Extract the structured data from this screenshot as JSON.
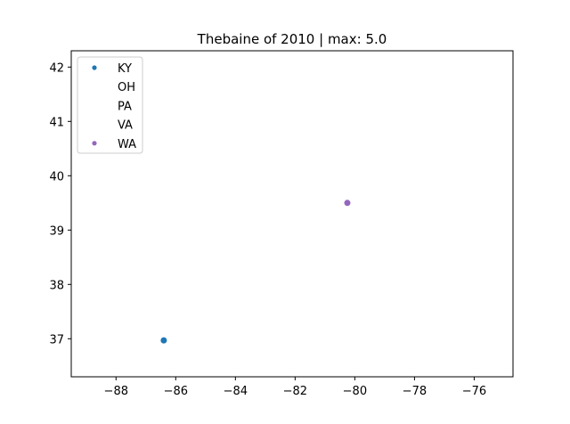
{
  "chart_data": {
    "type": "scatter",
    "title": "Thebaine of 2010 | max: 5.0",
    "xlabel": "",
    "ylabel": "",
    "xlim": [
      -89.5,
      -74.7
    ],
    "ylim": [
      36.3,
      42.3
    ],
    "x_ticks": [
      -88,
      -86,
      -84,
      -82,
      -80,
      -78,
      -76
    ],
    "x_tick_labels": [
      "−88",
      "−86",
      "−84",
      "−82",
      "−80",
      "−78",
      "−76"
    ],
    "y_ticks": [
      37,
      38,
      39,
      40,
      41,
      42
    ],
    "y_tick_labels": [
      "37",
      "38",
      "39",
      "40",
      "41",
      "42"
    ],
    "grid": false,
    "legend_position": "top-left",
    "series": [
      {
        "name": "KY",
        "color": "#1f77b4",
        "points": [
          {
            "x": -86.4,
            "y": 36.97
          }
        ]
      },
      {
        "name": "OH",
        "color": "#ff7f0e",
        "points": []
      },
      {
        "name": "PA",
        "color": "#2ca02c",
        "points": []
      },
      {
        "name": "VA",
        "color": "#d62728",
        "points": []
      },
      {
        "name": "WA",
        "color": "#9467bd",
        "points": [
          {
            "x": -80.25,
            "y": 39.5
          }
        ]
      }
    ]
  }
}
